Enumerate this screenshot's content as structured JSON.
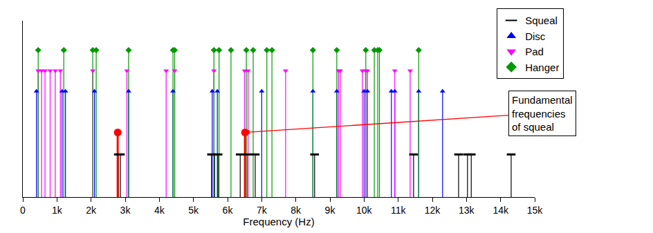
{
  "chart_data": {
    "type": "stem",
    "x_label": "Frequency (Hz)",
    "xlim": [
      0,
      15000
    ],
    "xticks": [
      0,
      {
        "value": 1000,
        "label": "1k"
      },
      {
        "value": 2000,
        "label": "2k"
      },
      {
        "value": 3000,
        "label": "3k"
      },
      {
        "value": 4000,
        "label": "4k"
      },
      {
        "value": 5000,
        "label": "5k"
      },
      {
        "value": 6000,
        "label": "6k"
      },
      {
        "value": 7000,
        "label": "7k"
      },
      {
        "value": 8000,
        "label": "8k"
      },
      {
        "value": 9000,
        "label": "9k"
      },
      {
        "value": 10000,
        "label": "10k"
      },
      {
        "value": 11000,
        "label": "11k"
      },
      {
        "value": 12000,
        "label": "12k"
      },
      {
        "value": 13000,
        "label": "13k"
      },
      {
        "value": 14000,
        "label": "14k"
      },
      {
        "value": 15000,
        "label": "15k"
      }
    ],
    "ylim": [
      0,
      1.2
    ],
    "tick_labels": "x",
    "grid": false,
    "legend": "top-right",
    "series": [
      {
        "name": "Squeal",
        "color": "#000000",
        "marker": "dash",
        "x": [
          2800,
          2860,
          5530,
          5620,
          5720,
          6370,
          6590,
          6810,
          8550,
          11450,
          12770,
          13030,
          13140,
          14310
        ],
        "values": [
          0.29,
          0.29,
          0.29,
          0.29,
          0.29,
          0.29,
          0.29,
          0.29,
          0.29,
          0.29,
          0.29,
          0.29,
          0.29,
          0.29
        ]
      },
      {
        "name": "Disc",
        "color": "#0000ff",
        "marker": "triangle-up",
        "x": [
          400,
          1150,
          1250,
          2100,
          3100,
          4400,
          5550,
          5700,
          7000,
          8500,
          9200,
          10000,
          10100,
          10800,
          10900,
          11600,
          12300
        ],
        "values": [
          0.72,
          0.72,
          0.72,
          0.72,
          0.72,
          0.72,
          0.72,
          0.72,
          0.72,
          0.72,
          0.72,
          0.72,
          0.72,
          0.72,
          0.72,
          0.72,
          0.72
        ]
      },
      {
        "name": "Pad",
        "color": "#ff00ff",
        "marker": "triangle-down",
        "x": [
          450,
          550,
          650,
          800,
          950,
          1100,
          2050,
          3050,
          4200,
          4450,
          5600,
          6500,
          6600,
          7700,
          9250,
          9300,
          9950,
          10050,
          10100,
          10900,
          11350
        ],
        "values": [
          0.86,
          0.86,
          0.86,
          0.86,
          0.86,
          0.86,
          0.86,
          0.86,
          0.86,
          0.86,
          0.86,
          0.86,
          0.86,
          0.86,
          0.86,
          0.86,
          0.86,
          0.86,
          0.86,
          0.86,
          0.86
        ]
      },
      {
        "name": "Hanger",
        "color": "#009900",
        "marker": "diamond",
        "x": [
          450,
          1200,
          2050,
          2150,
          3100,
          4400,
          4450,
          5600,
          5750,
          6100,
          6550,
          6750,
          7150,
          7300,
          8500,
          9200,
          10050,
          10300,
          10400,
          10450,
          11600
        ],
        "values": [
          1.0,
          1.0,
          1.0,
          1.0,
          1.0,
          1.0,
          1.0,
          1.0,
          1.0,
          1.0,
          1.0,
          1.0,
          1.0,
          1.0,
          1.0,
          1.0,
          1.0,
          1.0,
          1.0,
          1.0,
          1.0
        ]
      }
    ],
    "highlight": {
      "color": "#ff0000",
      "marker": "circle",
      "x": [
        2780,
        6510
      ],
      "values": [
        0.44,
        0.44
      ],
      "annotation": "Fundamental\nfrequencies\nof squeal"
    }
  }
}
